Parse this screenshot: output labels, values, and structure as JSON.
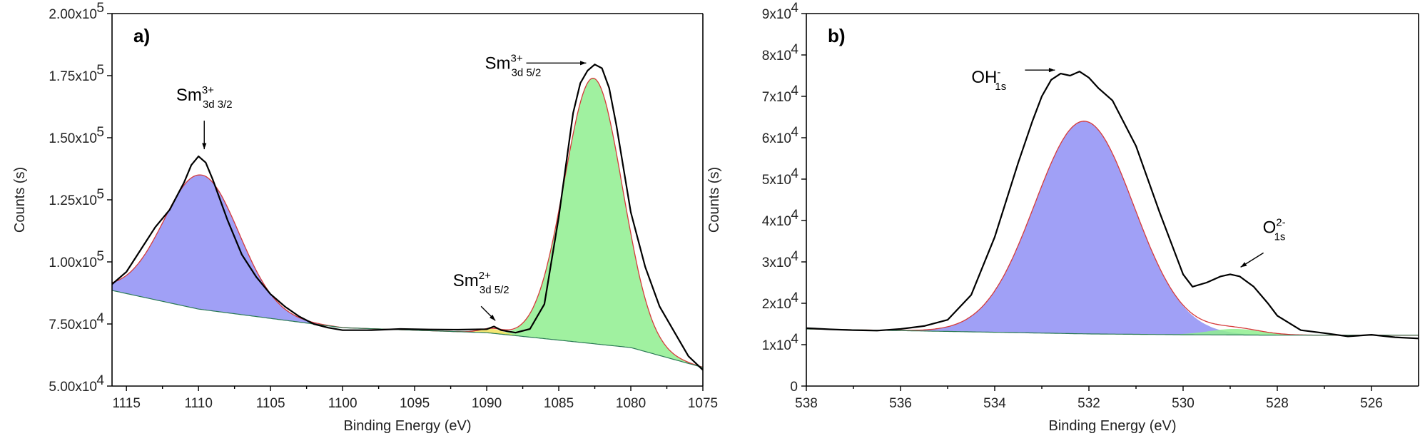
{
  "chart_data": [
    {
      "type": "area",
      "panel_label": "a)",
      "xlabel": "Binding Energy (eV)",
      "ylabel": "Counts (s)",
      "xlim": [
        1116,
        1075
      ],
      "ylim": [
        50000,
        200000
      ],
      "x_ticks": [
        1115,
        1110,
        1105,
        1100,
        1095,
        1090,
        1085,
        1080,
        1075
      ],
      "y_ticks": [
        {
          "value": 50000,
          "label": "5.00x10",
          "exp": "4"
        },
        {
          "value": 75000,
          "label": "7.50x10",
          "exp": "4"
        },
        {
          "value": 100000,
          "label": "1.00x10",
          "exp": "5"
        },
        {
          "value": 125000,
          "label": "1.25x10",
          "exp": "5"
        },
        {
          "value": 150000,
          "label": "1.50x10",
          "exp": "5"
        },
        {
          "value": 175000,
          "label": "1.75x10",
          "exp": "5"
        },
        {
          "value": 200000,
          "label": "2.00x10",
          "exp": "5"
        }
      ],
      "background": {
        "x": [
          1116,
          1110,
          1100,
          1090,
          1080,
          1075
        ],
        "y": [
          88500,
          81000,
          73500,
          71500,
          65500,
          57500
        ]
      },
      "peaks": [
        {
          "center": 1109.8,
          "height": 135000,
          "sigma": 2.6,
          "color": "#8f8ff5"
        },
        {
          "center": 1082.6,
          "height": 174000,
          "sigma": 2.0,
          "color": "#8fef8f"
        },
        {
          "center": 1089.6,
          "height": 73000,
          "sigma": 0.8,
          "color": "#f2e25a"
        }
      ],
      "measured": {
        "x": [
          1116,
          1115,
          1114,
          1113,
          1112,
          1111,
          1110.5,
          1110,
          1109.5,
          1109,
          1108,
          1107,
          1106,
          1105,
          1104,
          1103,
          1102,
          1101,
          1100,
          1098,
          1096,
          1094,
          1092,
          1090,
          1089.5,
          1089,
          1088,
          1087,
          1086,
          1085,
          1084,
          1083.5,
          1083,
          1082.5,
          1082,
          1081.5,
          1081,
          1080,
          1079,
          1078,
          1077,
          1076,
          1075
        ],
        "y": [
          91000,
          96000,
          105000,
          114000,
          121000,
          132000,
          139000,
          142500,
          140000,
          133000,
          117000,
          103000,
          94000,
          87000,
          82000,
          78000,
          75000,
          73500,
          72500,
          72500,
          73000,
          72800,
          72700,
          72900,
          74000,
          72500,
          71500,
          73000,
          83000,
          118000,
          160000,
          172000,
          177000,
          179500,
          178000,
          170000,
          155000,
          120000,
          98000,
          82000,
          72000,
          62000,
          56500
        ]
      },
      "annotations": [
        {
          "base": "Sm",
          "sup": "3+",
          "sub": "3d 3/2",
          "x": 1109.6,
          "y": 142500
        },
        {
          "base": "Sm",
          "sup": "3+",
          "sub": "3d 5/2",
          "x": 1082.7,
          "y": 179500
        },
        {
          "base": "Sm",
          "sup": "2+",
          "sub": "3d 5/2",
          "x": 1089.4,
          "y": 73500
        }
      ]
    },
    {
      "type": "area",
      "panel_label": "b)",
      "xlabel": "Binding Energy (eV)",
      "ylabel": "Counts (s)",
      "xlim": [
        538,
        525
      ],
      "ylim": [
        0,
        90000
      ],
      "x_ticks": [
        538,
        536,
        534,
        532,
        530,
        528,
        526
      ],
      "y_ticks": [
        {
          "value": 0,
          "label": "0",
          "exp": ""
        },
        {
          "value": 10000,
          "label": "1x10",
          "exp": "4"
        },
        {
          "value": 20000,
          "label": "2x10",
          "exp": "4"
        },
        {
          "value": 30000,
          "label": "3x10",
          "exp": "4"
        },
        {
          "value": 40000,
          "label": "4x10",
          "exp": "4"
        },
        {
          "value": 50000,
          "label": "5x10",
          "exp": "4"
        },
        {
          "value": 60000,
          "label": "6x10",
          "exp": "4"
        },
        {
          "value": 70000,
          "label": "7x10",
          "exp": "4"
        },
        {
          "value": 80000,
          "label": "8x10",
          "exp": "4"
        },
        {
          "value": 90000,
          "label": "9x10",
          "exp": "4"
        }
      ],
      "background": {
        "x": [
          538,
          536,
          534,
          532,
          530,
          528,
          526,
          525
        ],
        "y": [
          13800,
          13400,
          13000,
          12600,
          12400,
          12300,
          12300,
          12300
        ]
      },
      "peaks": [
        {
          "center": 532.1,
          "height": 64000,
          "sigma": 1.05,
          "color": "#8f8ff5"
        },
        {
          "center": 528.9,
          "height": 13800,
          "sigma": 0.55,
          "color": "#8fef8f"
        }
      ],
      "measured": {
        "x": [
          538,
          537.5,
          537,
          536.5,
          536,
          535.5,
          535,
          534.5,
          534,
          533.5,
          533.2,
          533,
          532.8,
          532.6,
          532.4,
          532.2,
          532,
          531.8,
          531.5,
          531,
          530.5,
          530,
          529.8,
          529.5,
          529.2,
          529,
          528.8,
          528.5,
          528.2,
          528,
          527.5,
          527,
          526.5,
          526,
          525.5,
          525
        ],
        "y": [
          14000,
          13700,
          13500,
          13400,
          13800,
          14500,
          16000,
          22000,
          36000,
          54000,
          64000,
          70000,
          74000,
          75500,
          75000,
          76000,
          74500,
          72000,
          69000,
          58000,
          42000,
          27000,
          24000,
          25000,
          26500,
          27000,
          26500,
          24000,
          20000,
          17000,
          13500,
          12800,
          12000,
          12400,
          11800,
          11500
        ]
      },
      "annotations": [
        {
          "base": "OH",
          "sup": "-",
          "sub": "1s",
          "x": 532.6,
          "y": 76000
        },
        {
          "base": "O",
          "sup": "2-",
          "sub": "1s",
          "x": 528.9,
          "y": 27000
        }
      ]
    }
  ]
}
